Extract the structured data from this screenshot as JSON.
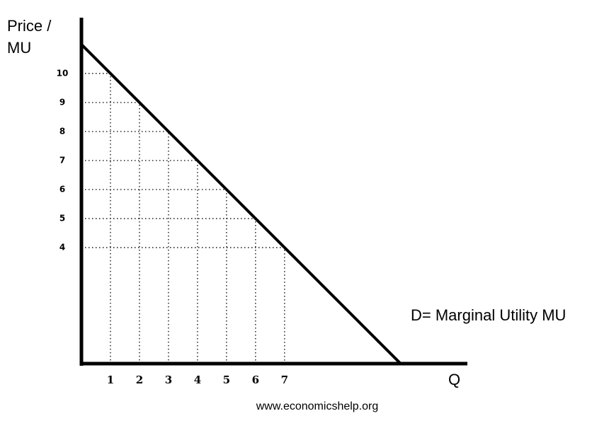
{
  "chart_data": {
    "type": "line",
    "y_label": [
      "Price /",
      "MU"
    ],
    "x_label": "Q",
    "annotation": "D= Marginal Utility MU",
    "source": "www.economicshelp.org",
    "x": [
      0,
      1,
      2,
      3,
      4,
      5,
      6,
      7,
      11
    ],
    "values": [
      11,
      10,
      9,
      8,
      7,
      6,
      5,
      4,
      0
    ],
    "color": "#000000",
    "xlim": [
      0,
      13.3
    ],
    "ylim": [
      0,
      11.8
    ],
    "xticks": [
      1,
      2,
      3,
      4,
      5,
      6,
      7
    ],
    "yticks": [
      4,
      5,
      6,
      7,
      8,
      9,
      10
    ],
    "guides": true
  }
}
